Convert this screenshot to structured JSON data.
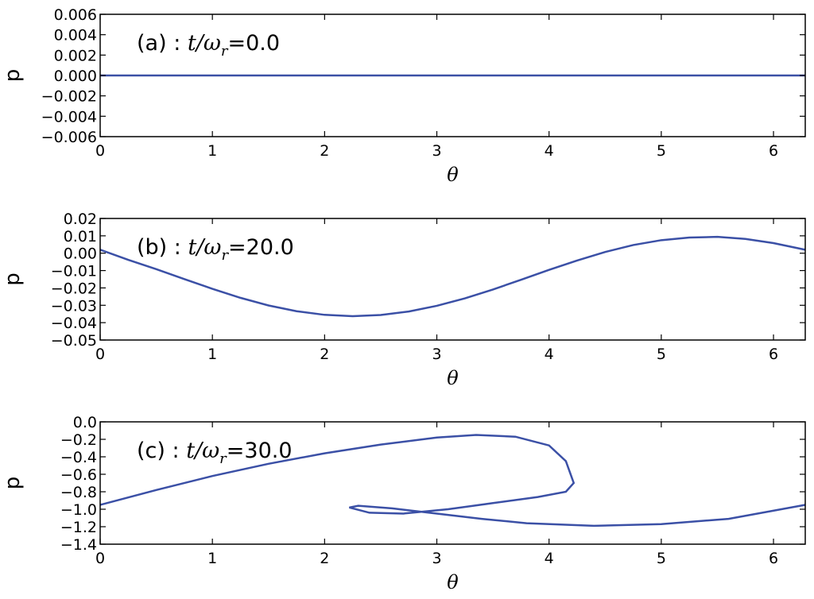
{
  "chart_data": [
    {
      "type": "line",
      "annotation": [
        "(a) : ",
        "t/ω",
        "r",
        "=0.0"
      ],
      "xlabel": "θ",
      "ylabel": "p",
      "color": "#3b50a6",
      "x": [
        0,
        6.283
      ],
      "values": [
        0,
        0
      ],
      "xlim": [
        0,
        6.283
      ],
      "xticks": [
        0,
        1,
        2,
        3,
        4,
        5,
        6
      ],
      "ylim": [
        -0.006,
        0.006
      ],
      "yticks": [
        {
          "value": -0.006,
          "label": "−0.006"
        },
        {
          "value": -0.004,
          "label": "−0.004"
        },
        {
          "value": -0.002,
          "label": "−0.002"
        },
        {
          "value": 0,
          "label": "0.000"
        },
        0.002,
        0.004,
        0.006
      ]
    },
    {
      "type": "line",
      "annotation": [
        "(b) : ",
        "t/ω",
        "r",
        "=20.0"
      ],
      "xlabel": "θ",
      "ylabel": "p",
      "color": "#3b50a6",
      "x": [
        0,
        0.25,
        0.5,
        0.75,
        1.0,
        1.25,
        1.5,
        1.75,
        2.0,
        2.25,
        2.5,
        2.75,
        3.0,
        3.25,
        3.5,
        3.75,
        4.0,
        4.25,
        4.5,
        4.75,
        5.0,
        5.25,
        5.5,
        5.75,
        6.0,
        6.283
      ],
      "values": [
        0.002,
        -0.0038,
        -0.0092,
        -0.0149,
        -0.0205,
        -0.0257,
        -0.0301,
        -0.0334,
        -0.0355,
        -0.0363,
        -0.0356,
        -0.0336,
        -0.0303,
        -0.026,
        -0.0209,
        -0.0153,
        -0.0096,
        -0.0042,
        0.0007,
        0.0047,
        0.0075,
        0.009,
        0.0094,
        0.0082,
        0.0058,
        0.002
      ],
      "xlim": [
        0,
        6.283
      ],
      "xticks": [
        0,
        1,
        2,
        3,
        4,
        5,
        6
      ],
      "ylim": [
        -0.05,
        0.02
      ],
      "yticks": [
        {
          "value": -0.05,
          "label": "−0.05"
        },
        {
          "value": -0.04,
          "label": "−0.04"
        },
        {
          "value": -0.03,
          "label": "−0.03"
        },
        {
          "value": -0.02,
          "label": "−0.02"
        },
        {
          "value": -0.01,
          "label": "−0.01"
        },
        {
          "value": 0,
          "label": "0.00"
        },
        0.01,
        0.02
      ]
    },
    {
      "type": "line",
      "annotation": [
        "(c) : ",
        "t/ω",
        "r",
        "=30.0"
      ],
      "xlabel": "θ",
      "ylabel": "p",
      "color": "#3b50a6",
      "x": [
        0,
        0.5,
        1,
        1.5,
        2,
        2.5,
        3,
        3.35,
        3.7,
        4.0,
        4.15,
        4.22,
        4.15,
        3.9,
        3.5,
        3.1,
        2.7,
        2.4,
        2.22,
        2.3,
        2.6,
        3.0,
        3.4,
        3.8,
        4.4,
        5.0,
        5.6,
        6.283
      ],
      "values": [
        -0.95,
        -0.78,
        -0.62,
        -0.48,
        -0.36,
        -0.26,
        -0.18,
        -0.15,
        -0.17,
        -0.27,
        -0.45,
        -0.7,
        -0.8,
        -0.86,
        -0.93,
        -1.0,
        -1.05,
        -1.04,
        -0.98,
        -0.96,
        -0.99,
        -1.05,
        -1.11,
        -1.16,
        -1.19,
        -1.17,
        -1.11,
        -0.95
      ],
      "xlim": [
        0,
        6.283
      ],
      "xticks": [
        0,
        1,
        2,
        3,
        4,
        5,
        6
      ],
      "ylim": [
        -1.4,
        0
      ],
      "yticks": [
        {
          "value": -1.4,
          "label": "−1.4"
        },
        {
          "value": -1.2,
          "label": "−1.2"
        },
        {
          "value": -1.0,
          "label": "−1.0"
        },
        {
          "value": -0.8,
          "label": "−0.8"
        },
        {
          "value": -0.6,
          "label": "−0.6"
        },
        {
          "value": -0.4,
          "label": "−0.4"
        },
        {
          "value": -0.2,
          "label": "−0.2"
        },
        {
          "value": 0,
          "label": "0.0"
        }
      ]
    }
  ]
}
